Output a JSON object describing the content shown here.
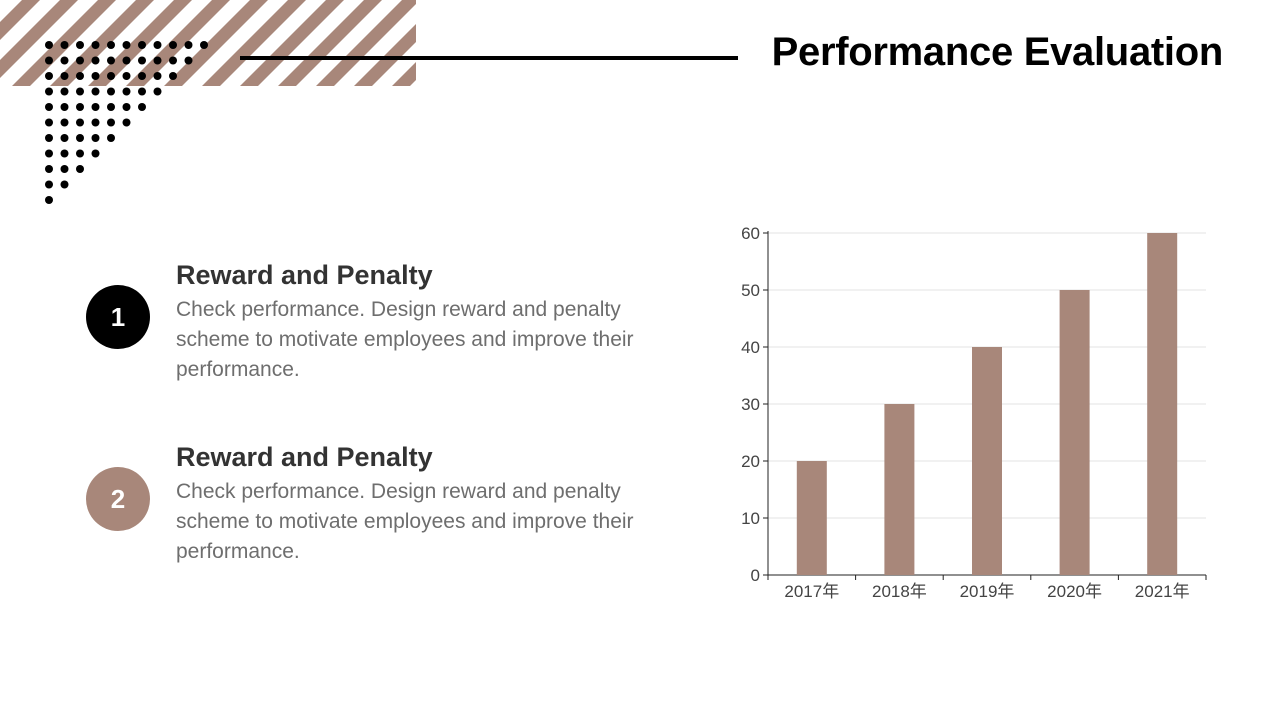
{
  "page": {
    "title": "Performance Evaluation"
  },
  "items": [
    {
      "number": "1",
      "heading": "Reward and Penalty",
      "body": "Check performance. Design reward and penalty scheme to motivate employees and improve their performance."
    },
    {
      "number": "2",
      "heading": "Reward and Penalty",
      "body": "Check performance. Design reward and penalty scheme to motivate employees and improve their performance."
    }
  ],
  "colors": {
    "accent": "#a8877a",
    "dark": "#000000",
    "grid": "#e3e3e3"
  },
  "chart_data": {
    "type": "bar",
    "title": "",
    "xlabel": "",
    "ylabel": "",
    "categories": [
      "2017年",
      "2018年",
      "2019年",
      "2020年",
      "2021年"
    ],
    "values": [
      20,
      30,
      40,
      50,
      60
    ],
    "ylim": [
      0,
      60
    ],
    "yticks": [
      "0",
      "10",
      "20",
      "30",
      "40",
      "50",
      "60"
    ],
    "grid": true,
    "legend": "none"
  }
}
